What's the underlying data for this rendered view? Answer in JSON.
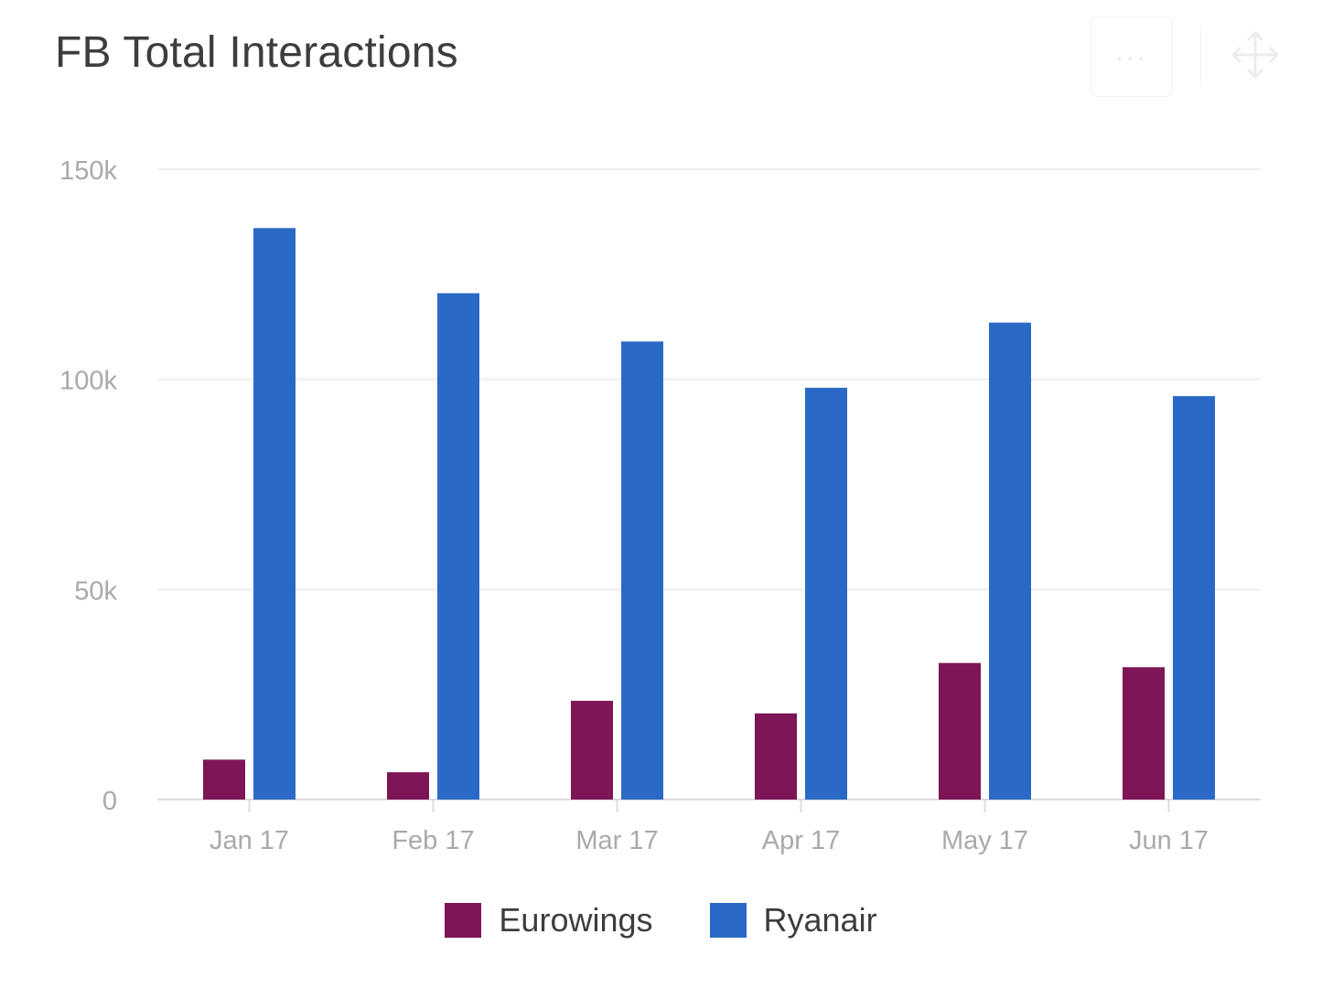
{
  "widget": {
    "title": "FB Total Interactions",
    "menu_label": "···",
    "menu_icon": "more-horizontal-icon",
    "move_icon": "move-arrows-icon"
  },
  "chart_data": {
    "type": "bar",
    "title": "FB Total Interactions",
    "xlabel": "",
    "ylabel": "",
    "categories": [
      "Jan 17",
      "Feb 17",
      "Mar 17",
      "Apr 17",
      "May 17",
      "Jun 17"
    ],
    "series": [
      {
        "name": "Eurowings",
        "color": "#7d1556",
        "values": [
          9500,
          6500,
          23500,
          20500,
          32500,
          31500
        ]
      },
      {
        "name": "Ryanair",
        "color": "#2a6ac6",
        "values": [
          136000,
          120500,
          109000,
          98000,
          113500,
          96000
        ]
      }
    ],
    "ylim": [
      0,
      150000
    ],
    "yticks": [
      0,
      50000,
      100000,
      150000
    ],
    "ytick_labels": [
      "0",
      "50k",
      "100k",
      "150k"
    ],
    "grid": true,
    "legend_position": "bottom-center"
  }
}
